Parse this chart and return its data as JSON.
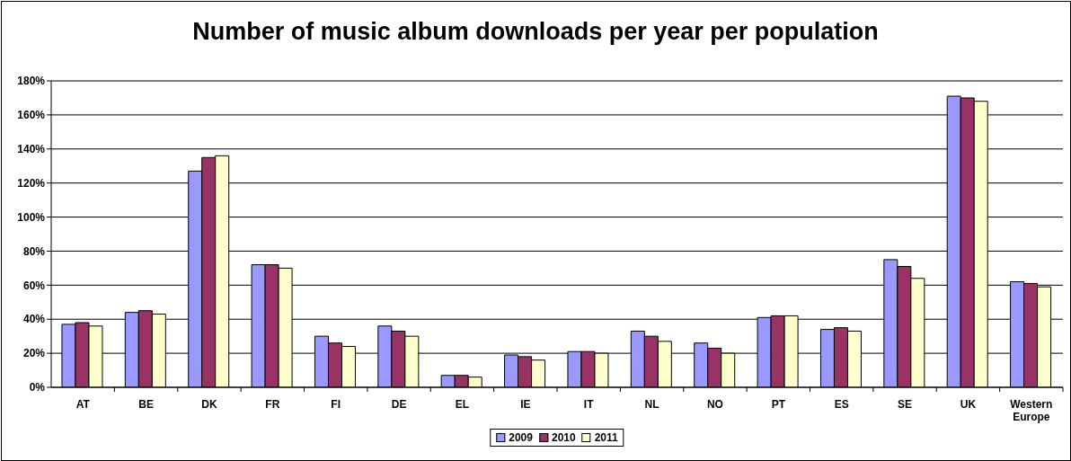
{
  "chart_data": {
    "type": "bar",
    "title": "Number of music album downloads per year per population",
    "categories": [
      "AT",
      "BE",
      "DK",
      "FR",
      "FI",
      "DE",
      "EL",
      "IE",
      "IT",
      "NL",
      "NO",
      "PT",
      "ES",
      "SE",
      "UK",
      "Western Europe"
    ],
    "series": [
      {
        "name": "2009",
        "color": "#9999ff",
        "values": [
          37,
          44,
          127,
          72,
          30,
          36,
          7,
          19,
          21,
          33,
          26,
          41,
          34,
          75,
          171,
          62
        ]
      },
      {
        "name": "2010",
        "color": "#993366",
        "values": [
          38,
          45,
          135,
          72,
          26,
          33,
          7,
          18,
          21,
          30,
          23,
          42,
          35,
          71,
          170,
          61
        ]
      },
      {
        "name": "2011",
        "color": "#ffffcc",
        "values": [
          36,
          43,
          136,
          70,
          24,
          30,
          6,
          16,
          20,
          27,
          20,
          42,
          33,
          64,
          168,
          59
        ]
      }
    ],
    "ylim": [
      0,
      180
    ],
    "yticks": [
      {
        "value": 0,
        "label": "0%"
      },
      {
        "value": 20,
        "label": "20%"
      },
      {
        "value": 40,
        "label": "40%"
      },
      {
        "value": 60,
        "label": "60%"
      },
      {
        "value": 80,
        "label": "80%"
      },
      {
        "value": 100,
        "label": "100%"
      },
      {
        "value": 120,
        "label": "120%"
      },
      {
        "value": 140,
        "label": "140%"
      },
      {
        "value": 160,
        "label": "160%"
      },
      {
        "value": 180,
        "label": "180%"
      }
    ],
    "grid": "y",
    "legend": "bottom"
  }
}
